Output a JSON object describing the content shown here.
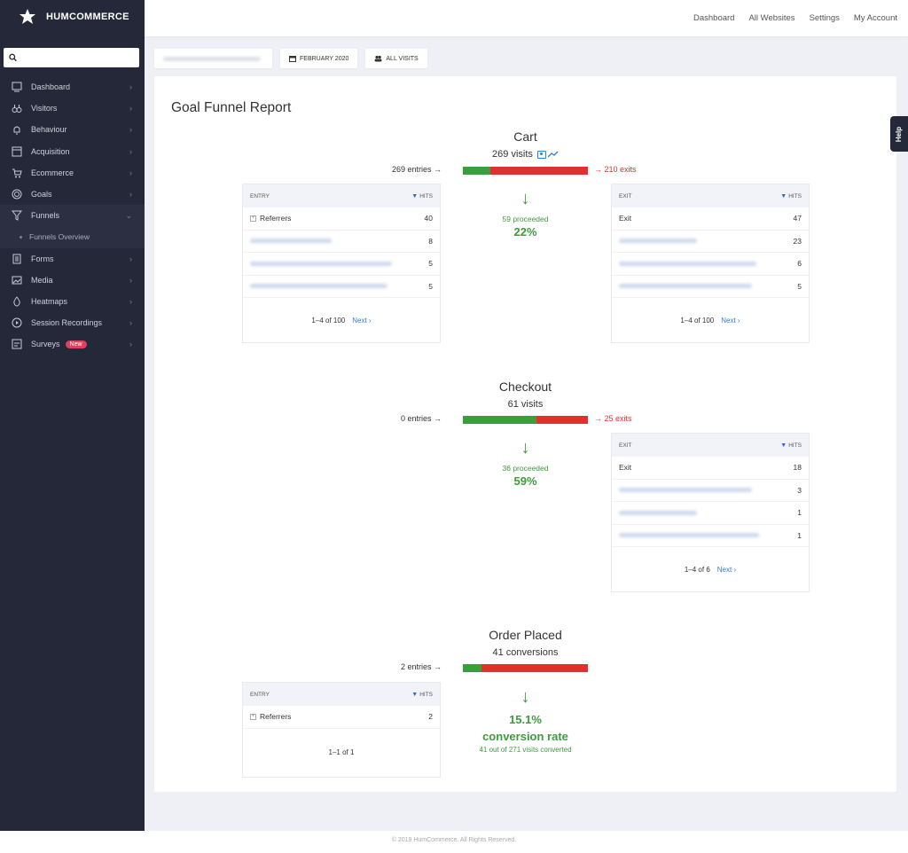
{
  "brand": {
    "name": "HUMCOMMERCE"
  },
  "search": {
    "placeholder": ""
  },
  "sidebar": {
    "items": [
      {
        "label": "Dashboard",
        "icon": "dashboard-icon"
      },
      {
        "label": "Visitors",
        "icon": "binoculars-icon"
      },
      {
        "label": "Behaviour",
        "icon": "bell-icon"
      },
      {
        "label": "Acquisition",
        "icon": "window-icon"
      },
      {
        "label": "Ecommerce",
        "icon": "cart-icon"
      },
      {
        "label": "Goals",
        "icon": "target-icon"
      },
      {
        "label": "Funnels",
        "icon": "funnel-icon"
      },
      {
        "label": "Funnels Overview",
        "icon": ""
      },
      {
        "label": "Forms",
        "icon": "form-icon"
      },
      {
        "label": "Media",
        "icon": "media-icon"
      },
      {
        "label": "Heatmaps",
        "icon": "drop-icon"
      },
      {
        "label": "Session Recordings",
        "icon": "play-icon"
      },
      {
        "label": "Surveys",
        "icon": "survey-icon",
        "badge": "New"
      }
    ]
  },
  "topnav": {
    "dashboard": "Dashboard",
    "all_websites": "All Websites",
    "settings": "Settings",
    "my_account": "My Account"
  },
  "filters": {
    "period": "FEBRUARY 2020",
    "segment": "ALL VISITS"
  },
  "report": {
    "title": "Goal Funnel Report",
    "cart": {
      "title": "Cart",
      "visits": "269 visits",
      "entries": "269 entries",
      "exits": "210 exits",
      "proceeded": "59 proceeded",
      "pct": "22%",
      "proceed_fraction": 0.22,
      "entry_table": {
        "col1": "ENTRY",
        "col2": "HITS",
        "rows": [
          {
            "label": "Referrers",
            "hits": "40"
          },
          {
            "label": "",
            "hits": "8"
          },
          {
            "label": "",
            "hits": "5"
          },
          {
            "label": "",
            "hits": "5"
          }
        ],
        "range": "1–4 of 100",
        "next": "Next ›"
      },
      "exit_table": {
        "col1": "EXIT",
        "col2": "HITS",
        "rows": [
          {
            "label": "Exit",
            "hits": "47"
          },
          {
            "label": "",
            "hits": "23"
          },
          {
            "label": "",
            "hits": "6"
          },
          {
            "label": "",
            "hits": "5"
          }
        ],
        "range": "1–4 of 100",
        "next": "Next ›"
      }
    },
    "checkout": {
      "title": "Checkout",
      "visits": "61 visits",
      "entries": "0 entries",
      "exits": "25 exits",
      "proceeded": "36 proceeded",
      "pct": "59%",
      "proceed_fraction": 0.59,
      "exit_table": {
        "col1": "EXIT",
        "col2": "HITS",
        "rows": [
          {
            "label": "Exit",
            "hits": "18"
          },
          {
            "label": "",
            "hits": "3"
          },
          {
            "label": "",
            "hits": "1"
          },
          {
            "label": "",
            "hits": "1"
          }
        ],
        "range": "1–4 of 6",
        "next": "Next ›"
      }
    },
    "order": {
      "title": "Order Placed",
      "visits": "41 conversions",
      "entries": "2 entries",
      "pct": "15.1%",
      "rate_label": "conversion rate",
      "sub": "41 out of 271 visits converted",
      "proceed_fraction": 0.151,
      "entry_table": {
        "col1": "ENTRY",
        "col2": "HITS",
        "rows": [
          {
            "label": "Referrers",
            "hits": "2"
          }
        ],
        "range": "1–1 of 1"
      }
    }
  },
  "help": {
    "label": "Help"
  },
  "footer": {
    "text": "© 2019 HumCommerce. All Rights Reserved."
  }
}
